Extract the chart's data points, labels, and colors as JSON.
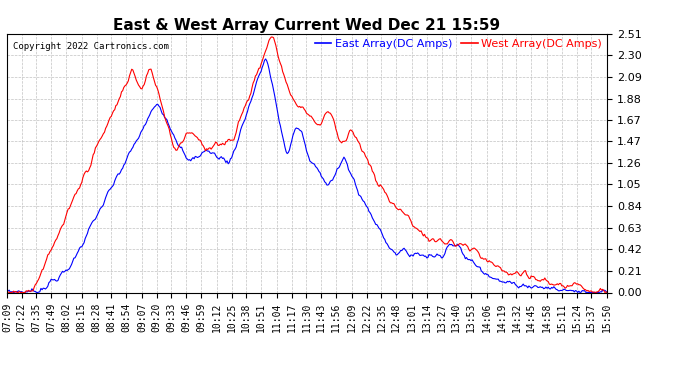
{
  "title": "East & West Array Current Wed Dec 21 15:59",
  "copyright": "Copyright 2022 Cartronics.com",
  "east_label": "East Array(DC Amps)",
  "west_label": "West Array(DC Amps)",
  "east_color": "#0000FF",
  "west_color": "#FF0000",
  "background_color": "#FFFFFF",
  "grid_color": "#BBBBBB",
  "ylim": [
    0,
    2.51
  ],
  "yticks": [
    0.0,
    0.21,
    0.42,
    0.63,
    0.84,
    1.05,
    1.26,
    1.47,
    1.67,
    1.88,
    2.09,
    2.3,
    2.51
  ],
  "title_fontsize": 11,
  "label_fontsize": 8,
  "tick_fontsize": 7,
  "x_tick_labels": [
    "07:09",
    "07:22",
    "07:35",
    "07:49",
    "08:02",
    "08:15",
    "08:28",
    "08:41",
    "08:54",
    "09:07",
    "09:20",
    "09:33",
    "09:46",
    "09:59",
    "10:12",
    "10:25",
    "10:38",
    "10:51",
    "11:04",
    "11:17",
    "11:30",
    "11:43",
    "11:56",
    "12:09",
    "12:22",
    "12:35",
    "12:48",
    "13:01",
    "13:14",
    "13:27",
    "13:40",
    "13:53",
    "14:06",
    "14:19",
    "14:32",
    "14:45",
    "14:58",
    "15:11",
    "15:24",
    "15:37",
    "15:50"
  ]
}
